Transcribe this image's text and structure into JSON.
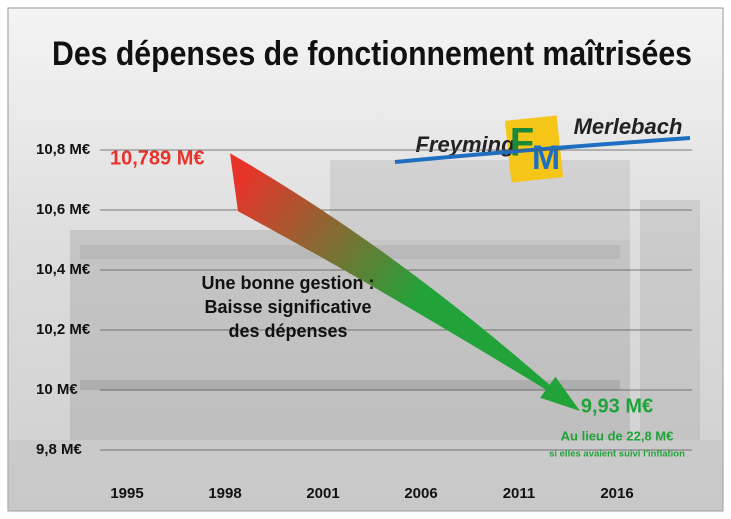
{
  "chart_data": {
    "type": "arrow",
    "title": "Des dépenses de fonctionnement maîtrisées",
    "categories": [
      "1995",
      "1998",
      "2001",
      "2006",
      "2011",
      "2016"
    ],
    "values": [
      null,
      10.789,
      null,
      null,
      null,
      9.93
    ],
    "value_labels": [
      null,
      "10,789 M€",
      null,
      null,
      null,
      "9,93 M€"
    ],
    "colors": [
      "#e8332a",
      "#21a33a"
    ],
    "ylim": [
      9.8,
      10.8
    ],
    "yticks": [
      {
        "value": 9.8,
        "label": "9,8 M€"
      },
      {
        "value": 10,
        "label": "10 M€"
      },
      {
        "value": 10.2,
        "label": "10,2 M€"
      },
      {
        "value": 10.4,
        "label": "10,4 M€"
      },
      {
        "value": 10.6,
        "label": "10,6 M€"
      },
      {
        "value": 10.8,
        "label": "10,8 M€"
      }
    ],
    "grid": true,
    "annotations": [
      "Une bonne gestion :",
      "Baisse significative",
      "des dépenses"
    ],
    "note": [
      "Au lieu de 22,8 M€",
      "si elles avaient suivi l'inflation"
    ]
  },
  "logo": {
    "left": "Freyming",
    "right": "Merlebach",
    "initials": [
      "F",
      "M"
    ]
  }
}
